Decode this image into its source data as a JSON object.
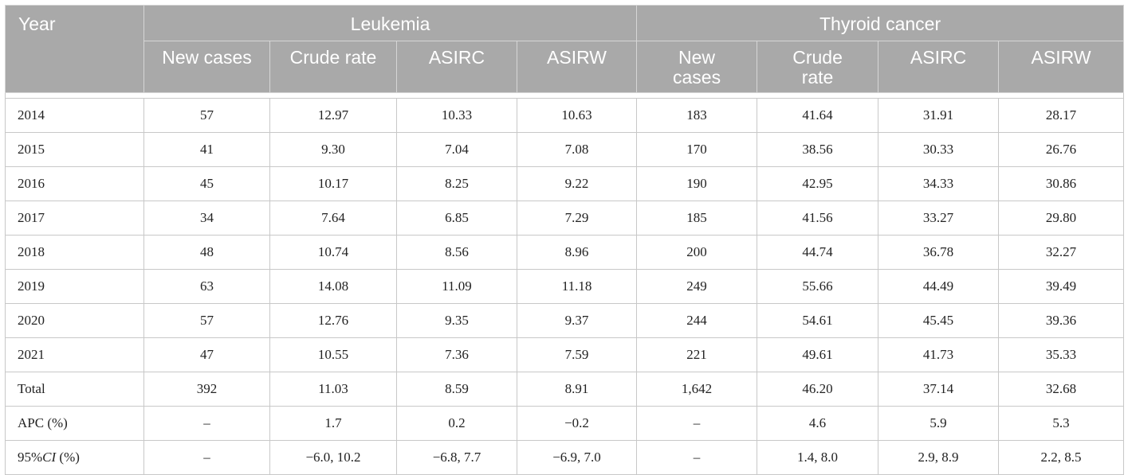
{
  "header": {
    "year": "Year",
    "groups": [
      "Leukemia",
      "Thyroid cancer"
    ],
    "leukemia_cols": [
      "New cases",
      "Crude rate",
      "ASIRC",
      "ASIRW"
    ],
    "thyroid_cols": [
      "New cases",
      "Crude rate",
      "ASIRC",
      "ASIRW"
    ]
  },
  "rows": [
    [
      "2014",
      "57",
      "12.97",
      "10.33",
      "10.63",
      "183",
      "41.64",
      "31.91",
      "28.17"
    ],
    [
      "2015",
      "41",
      "9.30",
      "7.04",
      "7.08",
      "170",
      "38.56",
      "30.33",
      "26.76"
    ],
    [
      "2016",
      "45",
      "10.17",
      "8.25",
      "9.22",
      "190",
      "42.95",
      "34.33",
      "30.86"
    ],
    [
      "2017",
      "34",
      "7.64",
      "6.85",
      "7.29",
      "185",
      "41.56",
      "33.27",
      "29.80"
    ],
    [
      "2018",
      "48",
      "10.74",
      "8.56",
      "8.96",
      "200",
      "44.74",
      "36.78",
      "32.27"
    ],
    [
      "2019",
      "63",
      "14.08",
      "11.09",
      "11.18",
      "249",
      "55.66",
      "44.49",
      "39.49"
    ],
    [
      "2020",
      "57",
      "12.76",
      "9.35",
      "9.37",
      "244",
      "54.61",
      "45.45",
      "39.36"
    ],
    [
      "2021",
      "47",
      "10.55",
      "7.36",
      "7.59",
      "221",
      "49.61",
      "41.73",
      "35.33"
    ],
    [
      "Total",
      "392",
      "11.03",
      "8.59",
      "8.91",
      "1,642",
      "46.20",
      "37.14",
      "32.68"
    ],
    [
      "APC (%)",
      "–",
      "1.7",
      "0.2",
      "−0.2",
      "–",
      "4.6",
      "5.9",
      "5.3"
    ],
    [
      "95%CI (%)",
      "–",
      "−6.0, 10.2",
      "−6.8, 7.7",
      "−6.9, 7.0",
      "–",
      "1.4, 8.0",
      "2.9, 8.9",
      "2.2, 8.5"
    ]
  ]
}
